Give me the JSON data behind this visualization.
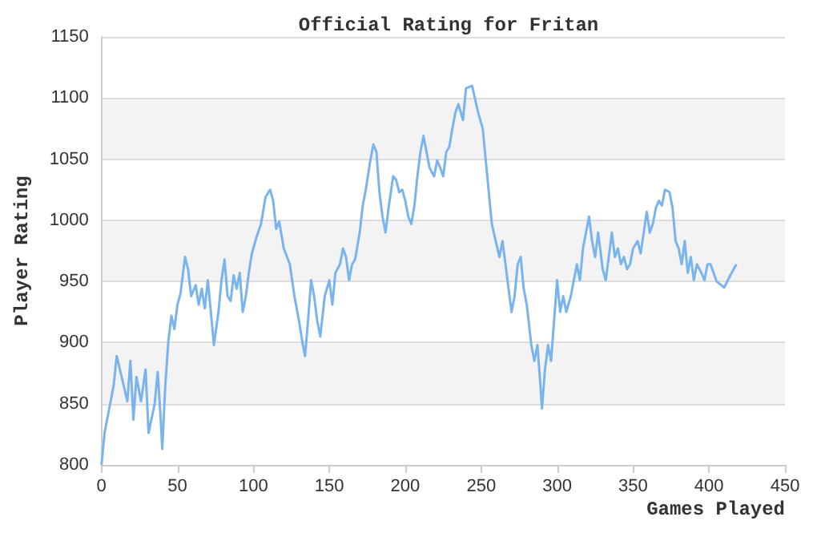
{
  "chart_data": {
    "type": "line",
    "title": "Official Rating for Fritan",
    "xlabel": "Games Played",
    "ylabel": "Player Rating",
    "xlim": [
      0,
      450
    ],
    "xticks": [
      0,
      50,
      100,
      150,
      200,
      250,
      300,
      350,
      400,
      450
    ],
    "ylim": [
      800,
      1150
    ],
    "yticks": [
      800,
      850,
      900,
      950,
      1000,
      1050,
      1100,
      1150
    ],
    "grid": "y",
    "marker": "none",
    "series": [
      {
        "color": "#7ab4ee",
        "x": [
          0,
          2,
          6,
          8,
          10,
          14,
          17,
          19,
          21,
          23,
          26,
          29,
          31,
          35,
          37,
          39,
          40,
          42,
          44,
          46,
          48,
          50,
          52,
          54,
          55,
          57,
          59,
          62,
          64,
          66,
          68,
          70,
          72,
          74,
          77,
          79,
          81,
          83,
          85,
          87,
          89,
          91,
          93,
          95,
          97,
          99,
          102,
          105,
          108,
          111,
          113,
          115,
          117,
          120,
          124,
          127,
          130,
          132,
          134,
          136,
          138,
          140,
          142,
          144,
          147,
          150,
          152,
          154,
          157,
          159,
          161,
          163,
          165,
          167,
          170,
          172,
          174,
          177,
          179,
          181,
          183,
          185,
          187,
          189,
          192,
          194,
          196,
          198,
          200,
          202,
          204,
          206,
          208,
          210,
          212,
          214,
          216,
          219,
          221,
          223,
          225,
          227,
          229,
          231,
          233,
          235,
          238,
          240,
          244,
          246,
          248,
          251,
          253,
          255,
          257,
          259,
          262,
          264,
          266,
          268,
          270,
          272,
          274,
          276,
          278,
          280,
          283,
          285,
          287,
          289,
          290,
          292,
          294,
          296,
          298,
          300,
          302,
          304,
          306,
          309,
          311,
          313,
          315,
          317,
          319,
          321,
          323,
          325,
          327,
          330,
          332,
          334,
          336,
          338,
          340,
          342,
          344,
          346,
          348,
          350,
          353,
          355,
          357,
          359,
          361,
          363,
          365,
          367,
          369,
          371,
          374,
          376,
          378,
          380,
          382,
          384,
          386,
          388,
          390,
          392,
          395,
          397,
          399,
          401,
          405,
          410,
          414,
          418
        ],
        "values": [
          800,
          826,
          852,
          865,
          889,
          868,
          852,
          885,
          837,
          872,
          852,
          878,
          826,
          850,
          876,
          837,
          813,
          865,
          901,
          922,
          911,
          931,
          940,
          960,
          970,
          960,
          938,
          947,
          931,
          944,
          928,
          951,
          925,
          898,
          925,
          951,
          968,
          938,
          934,
          955,
          944,
          957,
          925,
          938,
          957,
          973,
          986,
          997,
          1019,
          1025,
          1016,
          993,
          999,
          977,
          964,
          938,
          918,
          902,
          889,
          918,
          951,
          938,
          918,
          905,
          938,
          951,
          931,
          957,
          964,
          977,
          970,
          951,
          964,
          968,
          990,
          1012,
          1025,
          1049,
          1062,
          1056,
          1023,
          1003,
          990,
          1010,
          1036,
          1033,
          1023,
          1025,
          1016,
          1003,
          997,
          1012,
          1036,
          1056,
          1069,
          1056,
          1043,
          1036,
          1049,
          1043,
          1036,
          1056,
          1060,
          1075,
          1088,
          1095,
          1082,
          1108,
          1110,
          1099,
          1088,
          1075,
          1049,
          1023,
          997,
          986,
          970,
          983,
          964,
          944,
          925,
          938,
          964,
          970,
          944,
          931,
          898,
          885,
          898,
          865,
          846,
          878,
          898,
          885,
          918,
          951,
          925,
          938,
          925,
          938,
          951,
          964,
          951,
          977,
          990,
          1003,
          983,
          970,
          990,
          960,
          951,
          970,
          990,
          970,
          977,
          964,
          970,
          960,
          964,
          977,
          983,
          973,
          990,
          1007,
          990,
          997,
          1010,
          1016,
          1012,
          1025,
          1023,
          1010,
          983,
          977,
          964,
          983,
          957,
          970,
          951,
          964,
          957,
          951,
          964,
          964,
          950,
          945,
          955,
          964
        ]
      }
    ]
  }
}
